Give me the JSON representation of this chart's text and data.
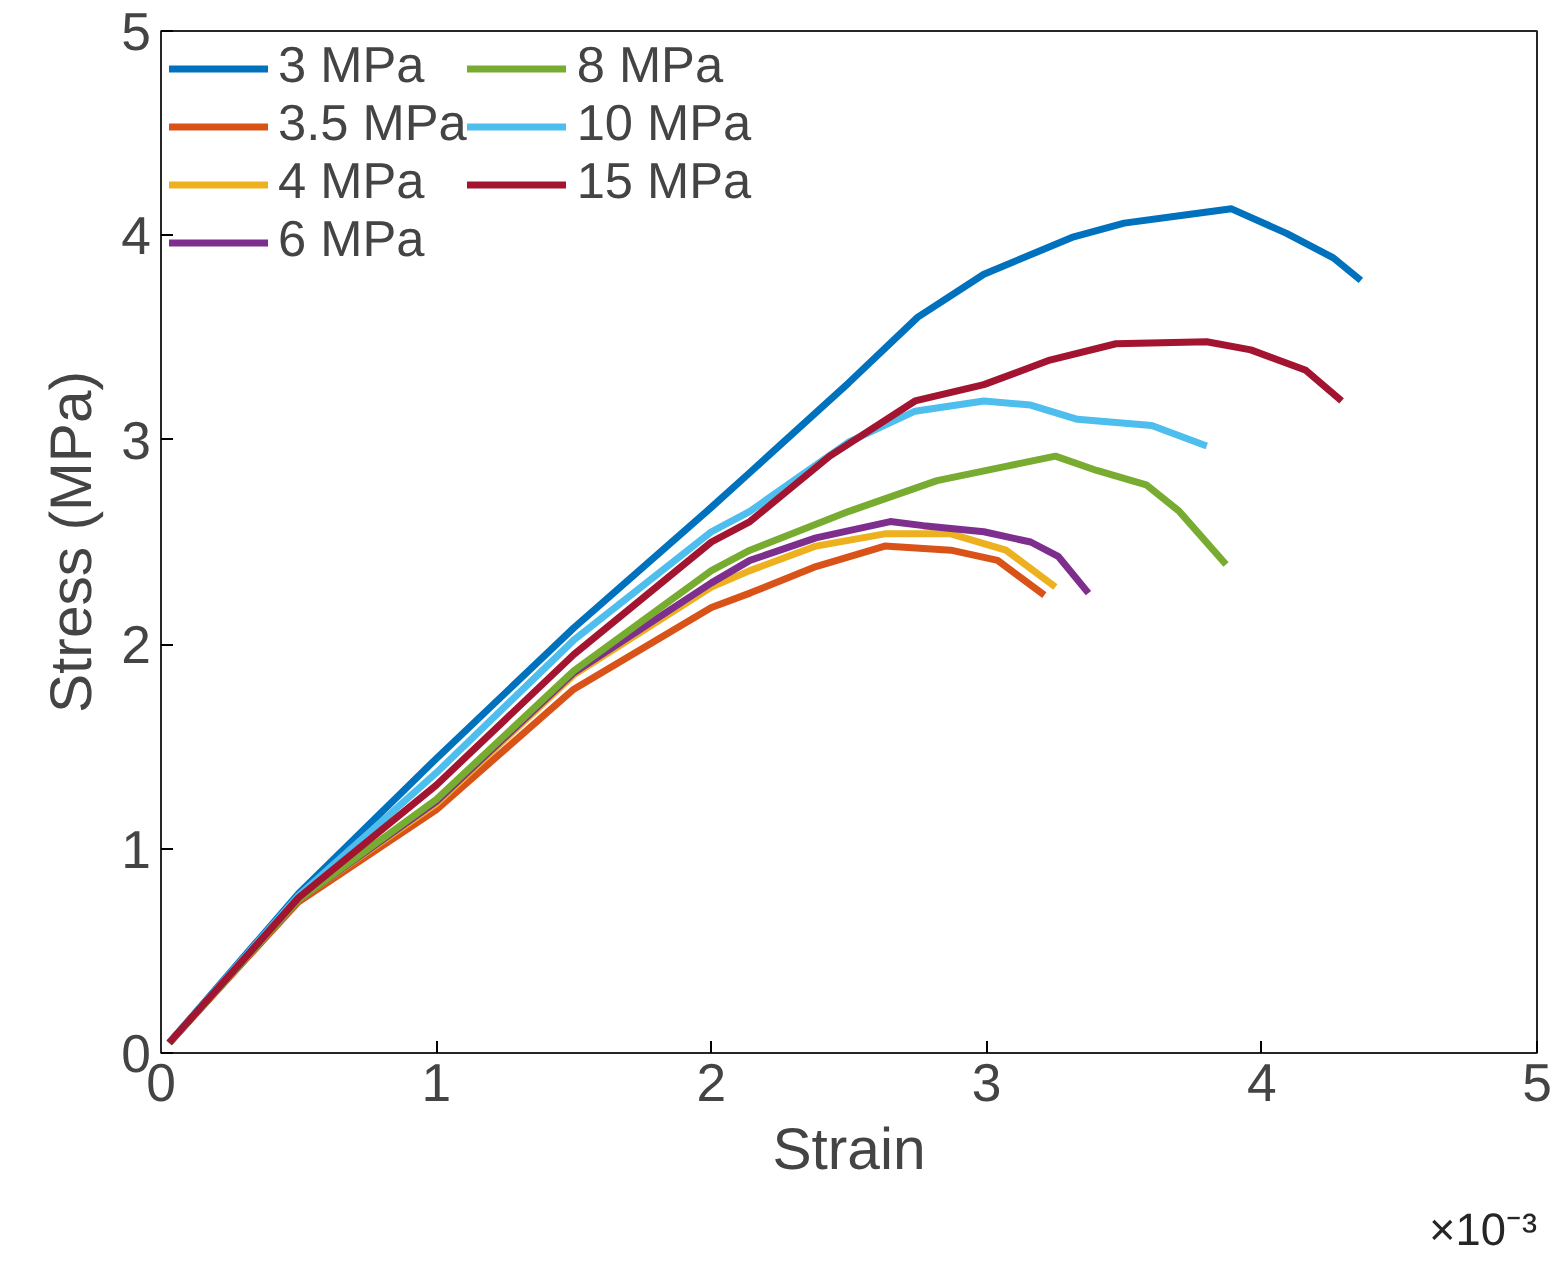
{
  "chart_data": {
    "type": "line",
    "xlabel": "Strain",
    "ylabel": "Stress (MPa)",
    "annotations": [
      "×10⁻³"
    ],
    "xlim": [
      0,
      5
    ],
    "ylim": [
      0,
      5
    ],
    "xticks": [
      0,
      1,
      2,
      3,
      4,
      5
    ],
    "yticks": [
      0,
      1,
      2,
      3,
      4,
      5
    ],
    "grid": false,
    "legend": "top left",
    "line_style": "solid",
    "marker": "none",
    "series": [
      {
        "name": "3 MPa",
        "color": "#0072bd",
        "x": [
          0.03,
          0.5,
          1,
          1.5,
          2,
          2.14,
          2.5,
          2.75,
          2.99,
          3.31,
          3.5,
          3.72,
          3.89,
          4.09,
          4.26,
          4.36
        ],
        "values": [
          0.05,
          0.78,
          1.44,
          2.08,
          2.67,
          2.84,
          3.28,
          3.6,
          3.81,
          3.99,
          4.06,
          4.1,
          4.13,
          4.01,
          3.89,
          3.78
        ]
      },
      {
        "name": "3.5 MPa",
        "color": "#d95319",
        "x": [
          0.03,
          0.5,
          1,
          1.5,
          2,
          2.14,
          2.38,
          2.63,
          2.87,
          3.04,
          3.21
        ],
        "values": [
          0.05,
          0.74,
          1.19,
          1.78,
          2.18,
          2.25,
          2.38,
          2.48,
          2.46,
          2.41,
          2.24
        ]
      },
      {
        "name": "4 MPa",
        "color": "#edb120",
        "x": [
          0.03,
          0.5,
          1,
          1.5,
          2,
          2.14,
          2.38,
          2.63,
          2.87,
          3.07,
          3.25
        ],
        "values": [
          0.05,
          0.75,
          1.22,
          1.85,
          2.28,
          2.36,
          2.48,
          2.54,
          2.54,
          2.46,
          2.28
        ]
      },
      {
        "name": "6 MPa",
        "color": "#7e2f8e",
        "x": [
          0.03,
          0.5,
          1,
          1.5,
          2,
          2.14,
          2.38,
          2.65,
          2.77,
          2.99,
          3.16,
          3.26,
          3.37
        ],
        "values": [
          0.05,
          0.75,
          1.23,
          1.86,
          2.3,
          2.41,
          2.52,
          2.6,
          2.58,
          2.55,
          2.5,
          2.43,
          2.25
        ]
      },
      {
        "name": "8 MPa",
        "color": "#77ac30",
        "x": [
          0.03,
          0.5,
          1,
          1.5,
          2,
          2.14,
          2.5,
          2.82,
          3.07,
          3.25,
          3.4,
          3.58,
          3.7,
          3.87
        ],
        "values": [
          0.05,
          0.75,
          1.24,
          1.87,
          2.36,
          2.46,
          2.65,
          2.8,
          2.87,
          2.92,
          2.85,
          2.78,
          2.65,
          2.39
        ]
      },
      {
        "name": "10 MPa",
        "color": "#4dbeee",
        "x": [
          0.03,
          0.5,
          1,
          1.5,
          2,
          2.14,
          2.5,
          2.74,
          2.99,
          3.16,
          3.33,
          3.6,
          3.8
        ],
        "values": [
          0.05,
          0.77,
          1.37,
          2.02,
          2.55,
          2.65,
          2.99,
          3.14,
          3.19,
          3.17,
          3.1,
          3.07,
          2.97
        ]
      },
      {
        "name": "15 MPa",
        "color": "#a2142f",
        "x": [
          0.03,
          0.5,
          1,
          1.5,
          2,
          2.14,
          2.43,
          2.74,
          2.99,
          3.23,
          3.47,
          3.8,
          3.96,
          4.16,
          4.29
        ],
        "values": [
          0.05,
          0.76,
          1.31,
          1.95,
          2.5,
          2.6,
          2.92,
          3.19,
          3.27,
          3.39,
          3.47,
          3.48,
          3.44,
          3.34,
          3.19
        ]
      }
    ]
  }
}
